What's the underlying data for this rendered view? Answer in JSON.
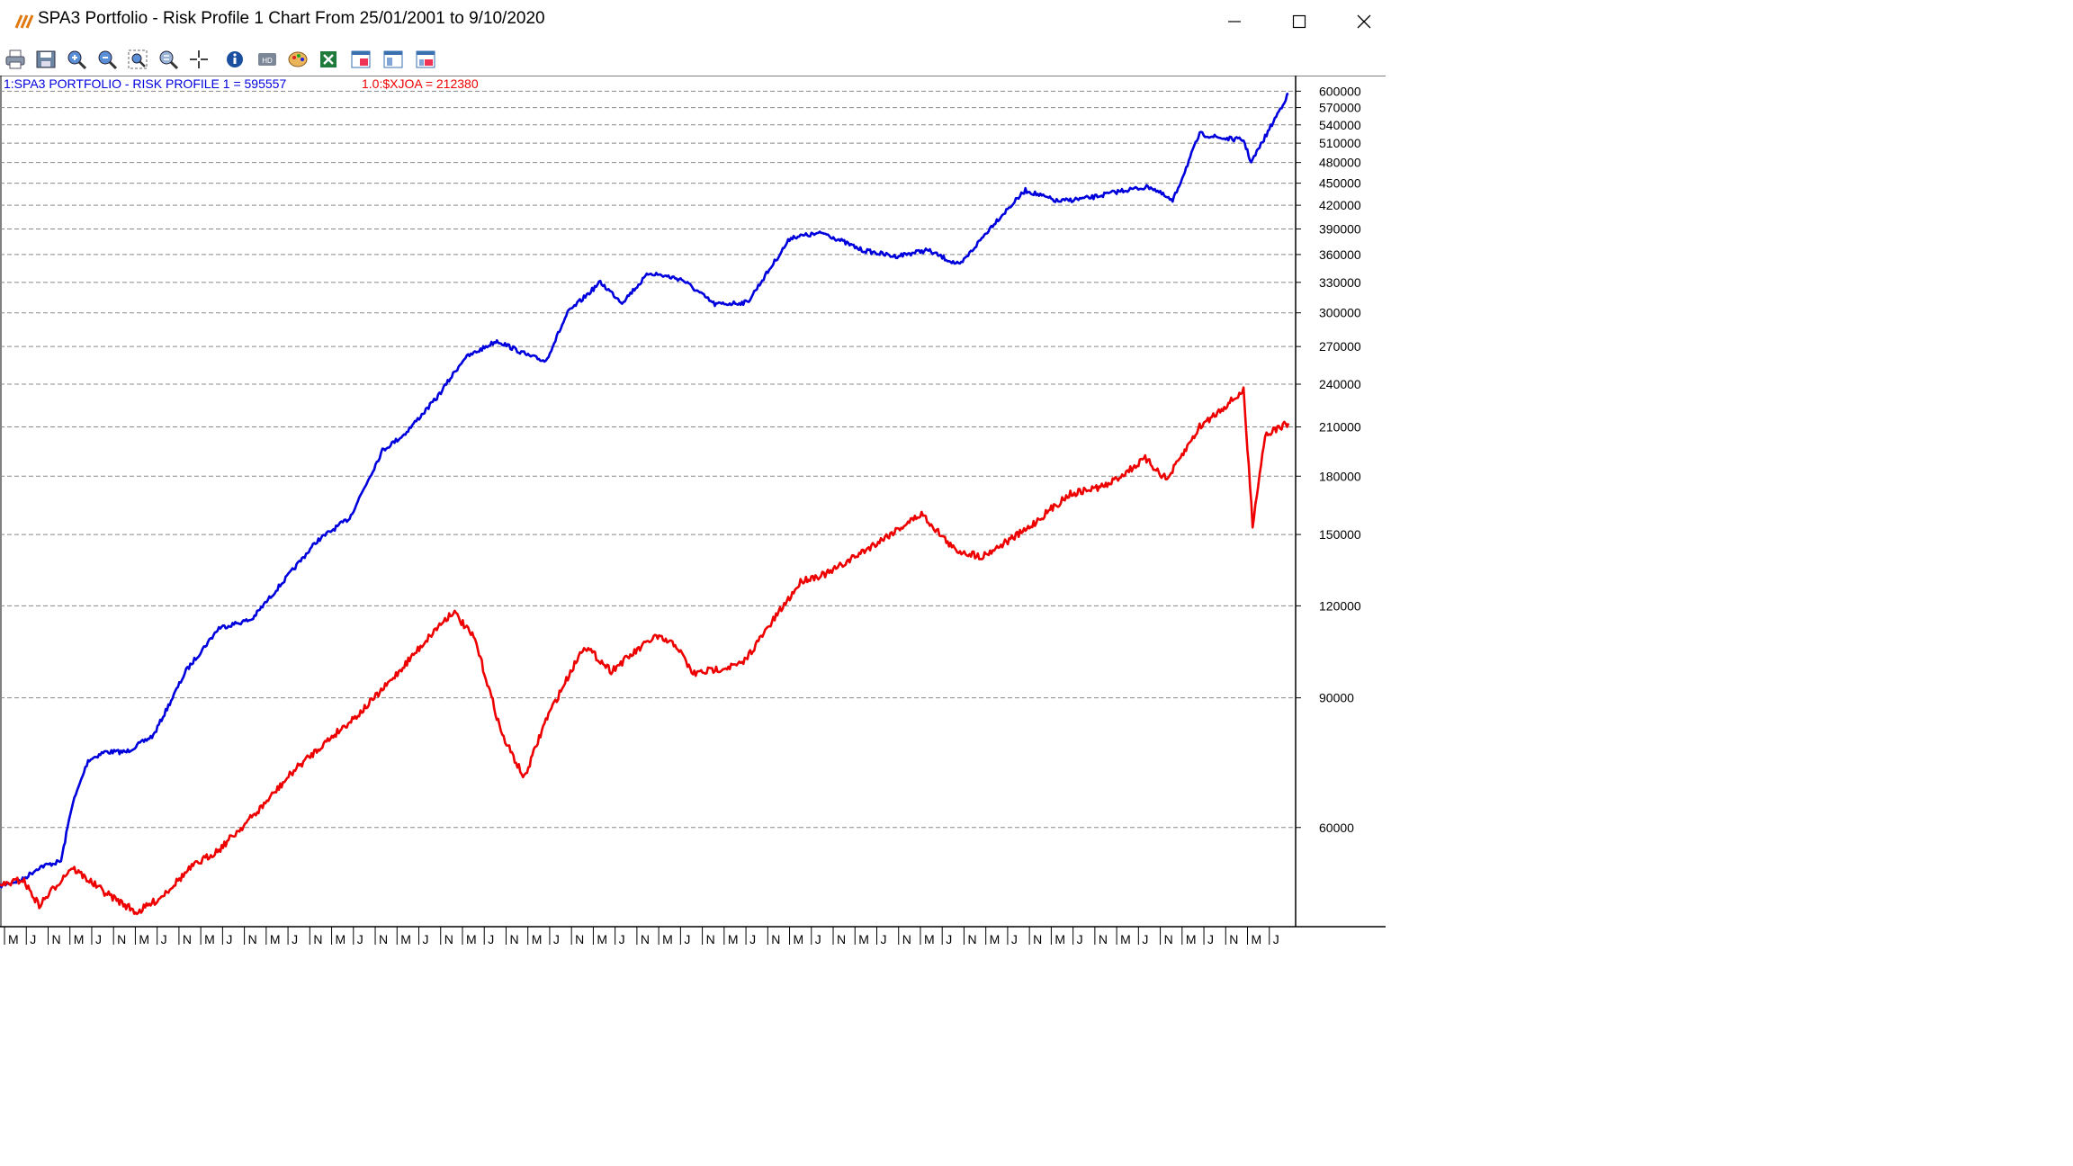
{
  "window": {
    "title": "SPA3 Portfolio - Risk Profile 1 Chart From 25/01/2001 to 9/10/2020",
    "icon": "chart-logo-icon",
    "controls": [
      "minimize-icon",
      "maximize-icon",
      "close-icon"
    ]
  },
  "toolbar": {
    "buttons": [
      "print-icon",
      "save-icon",
      "zoom-in-icon",
      "zoom-out-icon",
      "zoom-fit-icon",
      "zoom-reset-icon",
      "crosshair-icon",
      "info-icon",
      "hd-icon",
      "palette-icon",
      "export-excel-icon",
      "window-1-icon",
      "window-2-icon",
      "window-3-icon"
    ]
  },
  "legend": {
    "portfolio": "1:SPA3 PORTFOLIO - RISK PROFILE 1 = 595557",
    "index": "1.0:$XJOA = 212380"
  },
  "colors": {
    "portfolio": "#0000dd",
    "index": "#ee0000",
    "grid": "#888888"
  },
  "chart_data": {
    "type": "line",
    "y_scale": "log",
    "ylim": [
      44000,
      630000
    ],
    "y_ticks": [
      600000,
      570000,
      540000,
      510000,
      480000,
      450000,
      420000,
      390000,
      360000,
      330000,
      300000,
      270000,
      240000,
      210000,
      180000,
      150000,
      120000,
      90000,
      60000
    ],
    "x_range": [
      "2001-01-25",
      "2020-10-09"
    ],
    "x_tick_labels": [
      "M",
      "J",
      "N",
      "M",
      "J",
      "N",
      "M",
      "J",
      "N",
      "M",
      "J",
      "N",
      "M",
      "J",
      "N",
      "M",
      "J",
      "N",
      "M",
      "J",
      "N",
      "M",
      "J",
      "N",
      "M",
      "J",
      "N",
      "M",
      "J",
      "N",
      "M",
      "J",
      "N",
      "M",
      "J",
      "N",
      "M",
      "J",
      "N",
      "M",
      "J",
      "N",
      "M",
      "J",
      "N",
      "M",
      "J",
      "N",
      "M",
      "J",
      "N",
      "M",
      "J",
      "N",
      "M",
      "J",
      "N",
      "M",
      "J"
    ],
    "series": [
      {
        "name": "1:SPA3 PORTFOLIO - RISK PROFILE 1",
        "color": "#0000dd",
        "points": [
          [
            "2001-01-25",
            50000
          ],
          [
            "2001-06-01",
            51000
          ],
          [
            "2001-09-01",
            53000
          ],
          [
            "2002-01-01",
            54000
          ],
          [
            "2002-03-01",
            64000
          ],
          [
            "2002-06-01",
            74000
          ],
          [
            "2002-09-01",
            76000
          ],
          [
            "2003-01-01",
            76000
          ],
          [
            "2003-06-01",
            80000
          ],
          [
            "2003-12-01",
            98000
          ],
          [
            "2004-06-01",
            112000
          ],
          [
            "2004-12-01",
            115000
          ],
          [
            "2005-06-01",
            130000
          ],
          [
            "2005-12-01",
            147000
          ],
          [
            "2006-06-01",
            158000
          ],
          [
            "2006-12-01",
            195000
          ],
          [
            "2007-04-01",
            205000
          ],
          [
            "2007-10-01",
            230000
          ],
          [
            "2008-03-01",
            260000
          ],
          [
            "2008-09-01",
            275000
          ],
          [
            "2009-03-01",
            262000
          ],
          [
            "2009-06-01",
            258000
          ],
          [
            "2009-10-01",
            300000
          ],
          [
            "2010-04-01",
            330000
          ],
          [
            "2010-08-01",
            310000
          ],
          [
            "2011-01-01",
            340000
          ],
          [
            "2011-07-01",
            333000
          ],
          [
            "2012-01-01",
            308000
          ],
          [
            "2012-07-01",
            310000
          ],
          [
            "2013-03-01",
            380000
          ],
          [
            "2013-09-01",
            385000
          ],
          [
            "2014-04-01",
            365000
          ],
          [
            "2014-10-01",
            358000
          ],
          [
            "2015-04-01",
            365000
          ],
          [
            "2015-10-01",
            348000
          ],
          [
            "2016-04-01",
            395000
          ],
          [
            "2016-10-01",
            440000
          ],
          [
            "2017-04-01",
            425000
          ],
          [
            "2017-10-01",
            430000
          ],
          [
            "2018-04-01",
            440000
          ],
          [
            "2018-09-01",
            445000
          ],
          [
            "2019-01-01",
            425000
          ],
          [
            "2019-06-01",
            525000
          ],
          [
            "2019-10-01",
            518000
          ],
          [
            "2020-02-01",
            515000
          ],
          [
            "2020-03-15",
            480000
          ],
          [
            "2020-06-01",
            520000
          ],
          [
            "2020-10-09",
            595557
          ]
        ]
      },
      {
        "name": "1.0:$XJOA",
        "color": "#ee0000",
        "points": [
          [
            "2001-01-25",
            50000
          ],
          [
            "2001-06-01",
            51000
          ],
          [
            "2001-09-01",
            47000
          ],
          [
            "2002-03-01",
            53000
          ],
          [
            "2002-09-01",
            49000
          ],
          [
            "2003-03-01",
            46000
          ],
          [
            "2003-07-01",
            48000
          ],
          [
            "2004-01-01",
            53000
          ],
          [
            "2004-06-01",
            56000
          ],
          [
            "2005-01-01",
            63000
          ],
          [
            "2005-08-01",
            72000
          ],
          [
            "2006-03-01",
            80000
          ],
          [
            "2006-08-01",
            86000
          ],
          [
            "2007-01-01",
            94000
          ],
          [
            "2007-10-01",
            112000
          ],
          [
            "2008-01-01",
            118000
          ],
          [
            "2008-05-01",
            108000
          ],
          [
            "2008-10-01",
            80000
          ],
          [
            "2009-02-01",
            70000
          ],
          [
            "2009-06-01",
            84000
          ],
          [
            "2010-01-01",
            106000
          ],
          [
            "2010-06-01",
            98000
          ],
          [
            "2011-02-01",
            109000
          ],
          [
            "2011-06-01",
            106000
          ],
          [
            "2011-09-01",
            97000
          ],
          [
            "2012-06-01",
            100000
          ],
          [
            "2013-05-01",
            130000
          ],
          [
            "2013-10-01",
            133000
          ],
          [
            "2014-06-01",
            145000
          ],
          [
            "2015-03-01",
            160000
          ],
          [
            "2015-09-01",
            143000
          ],
          [
            "2016-02-01",
            140000
          ],
          [
            "2016-10-01",
            152000
          ],
          [
            "2017-06-01",
            170000
          ],
          [
            "2018-01-01",
            175000
          ],
          [
            "2018-08-01",
            190000
          ],
          [
            "2018-12-01",
            178000
          ],
          [
            "2019-06-01",
            210000
          ],
          [
            "2020-02-01",
            235000
          ],
          [
            "2020-03-23",
            155000
          ],
          [
            "2020-06-01",
            205000
          ],
          [
            "2020-10-09",
            212380
          ]
        ]
      }
    ]
  }
}
